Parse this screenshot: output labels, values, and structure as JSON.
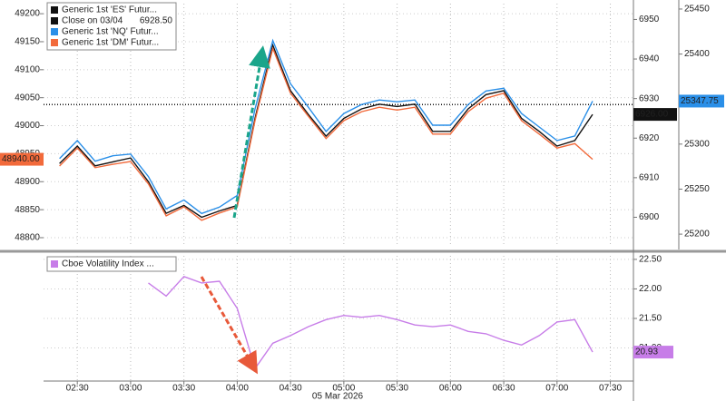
{
  "chart_data": [
    {
      "type": "line",
      "x": [
        "02:20",
        "02:30",
        "02:40",
        "02:50",
        "03:00",
        "03:10",
        "03:20",
        "03:30",
        "03:40",
        "03:50",
        "04:00",
        "04:10",
        "04:20",
        "04:30",
        "04:40",
        "04:50",
        "05:00",
        "05:10",
        "05:20",
        "05:30",
        "05:40",
        "05:50",
        "06:00",
        "06:10",
        "06:20",
        "06:30",
        "06:40",
        "06:50",
        "07:00",
        "07:10",
        "07:20"
      ],
      "xlim": [
        "02:11",
        "07:43"
      ],
      "series": [
        {
          "name": "Generic 1st 'ES' Futur...",
          "color": "#111111",
          "axis": "y2",
          "values": [
            6913.6,
            6918,
            6913,
            6914,
            6915,
            6909,
            6901,
            6903,
            6900,
            6901.6,
            6903,
            6925,
            6943.5,
            6932,
            6926,
            6920.5,
            6925,
            6927.4,
            6928.6,
            6928,
            6928.6,
            6921.7,
            6921.7,
            6927.4,
            6931,
            6932,
            6925,
            6921.7,
            6918,
            6919.4,
            6926
          ],
          "value_labels": [
            null,
            null,
            null,
            null,
            null,
            null,
            null,
            null,
            null,
            null,
            null,
            null,
            null,
            null,
            null,
            null,
            null,
            null,
            null,
            null,
            null,
            null,
            null,
            null,
            null,
            null,
            null,
            null,
            null,
            null,
            "6926.00"
          ]
        },
        {
          "name": "Generic 1st 'NQ' Futur...",
          "color": "#2a8fe8",
          "axis": "y3",
          "values": [
            25284,
            25304,
            25281,
            25287,
            25289,
            25264,
            25228,
            25238,
            25223,
            25230,
            25243,
            25339,
            25415,
            25367,
            25341,
            25314,
            25334,
            25344,
            25349,
            25347,
            25349,
            25321,
            25321,
            25344,
            25359,
            25362,
            25334,
            25319,
            25304,
            25309,
            25347.75
          ],
          "value_labels": [
            null,
            null,
            null,
            null,
            null,
            null,
            null,
            null,
            null,
            null,
            null,
            null,
            null,
            null,
            null,
            null,
            null,
            null,
            null,
            null,
            null,
            null,
            null,
            null,
            null,
            null,
            null,
            null,
            null,
            null,
            "25347.75"
          ]
        },
        {
          "name": "Generic 1st 'DM' Futur...",
          "color": "#f26a3b",
          "axis": "y",
          "values": [
            48928,
            48960,
            48925,
            48931,
            48936,
            48896,
            48839,
            48855,
            48831,
            48844,
            48855,
            49009,
            49138,
            49058,
            49017,
            48977,
            49009,
            49025,
            49033,
            49028,
            49033,
            48985,
            48985,
            49025,
            49049,
            49058,
            49009,
            48985,
            48960,
            48968,
            48940
          ],
          "value_labels": [
            null,
            null,
            null,
            null,
            null,
            null,
            null,
            null,
            null,
            null,
            null,
            null,
            null,
            null,
            null,
            null,
            null,
            null,
            null,
            null,
            null,
            null,
            null,
            null,
            null,
            null,
            null,
            null,
            null,
            null,
            "48940.00"
          ]
        }
      ],
      "reference_line": {
        "name": "Close on 03/04",
        "value": 6928.5,
        "value_label": "6928.50",
        "axis": "y2"
      },
      "ylim": [
        48787,
        49218
      ],
      "yticks": [
        48800,
        48850,
        48900,
        48950,
        49000,
        49050,
        49100,
        49150,
        49200
      ],
      "y2lim": [
        6893,
        6954
      ],
      "y2ticks": [
        6900,
        6910,
        6920,
        6930,
        6940,
        6950
      ],
      "y3lim": [
        25188,
        25456
      ],
      "y3ticks": [
        25200,
        25250,
        25300,
        25350,
        25400,
        25450
      ],
      "grid": true
    },
    {
      "type": "line",
      "x": [
        "02:20",
        "02:30",
        "02:40",
        "02:50",
        "03:00",
        "03:10",
        "03:20",
        "03:30",
        "03:40",
        "03:50",
        "04:00",
        "04:10",
        "04:20",
        "04:30",
        "04:40",
        "04:50",
        "05:00",
        "05:10",
        "05:20",
        "05:30",
        "05:40",
        "05:50",
        "06:00",
        "06:10",
        "06:20",
        "06:30",
        "06:40",
        "06:50",
        "07:00",
        "07:10",
        "07:20"
      ],
      "xlim": [
        "02:11",
        "07:43"
      ],
      "xticks": [
        "02:30",
        "03:00",
        "03:30",
        "04:00",
        "04:30",
        "05:00",
        "05:30",
        "06:00",
        "06:30",
        "07:00",
        "07:30"
      ],
      "xlabel": "05 Mar 2026",
      "series": [
        {
          "name": "Cboe Volatility Index ...",
          "color": "#c77de8",
          "axis": "y",
          "values": [
            null,
            null,
            null,
            null,
            null,
            22.1,
            21.88,
            22.21,
            22.1,
            22.13,
            21.67,
            20.65,
            21.08,
            21.21,
            21.36,
            21.48,
            21.55,
            21.52,
            21.55,
            21.48,
            21.39,
            21.36,
            21.39,
            21.28,
            21.24,
            21.13,
            21.05,
            21.21,
            21.44,
            21.48,
            20.93
          ],
          "value_labels": [
            null,
            null,
            null,
            null,
            null,
            null,
            null,
            null,
            null,
            null,
            null,
            null,
            null,
            null,
            null,
            null,
            null,
            null,
            null,
            null,
            null,
            null,
            null,
            null,
            null,
            null,
            null,
            null,
            null,
            null,
            "20.93"
          ]
        }
      ],
      "ylim": [
        20.44,
        22.56
      ],
      "yticks": [
        {
          "value": 21.0,
          "label": "21.00"
        },
        {
          "value": 21.5,
          "label": "21.50"
        },
        {
          "value": 22.0,
          "label": "22.00"
        },
        {
          "value": 22.5,
          "label": "22.50"
        }
      ],
      "grid": true
    }
  ]
}
